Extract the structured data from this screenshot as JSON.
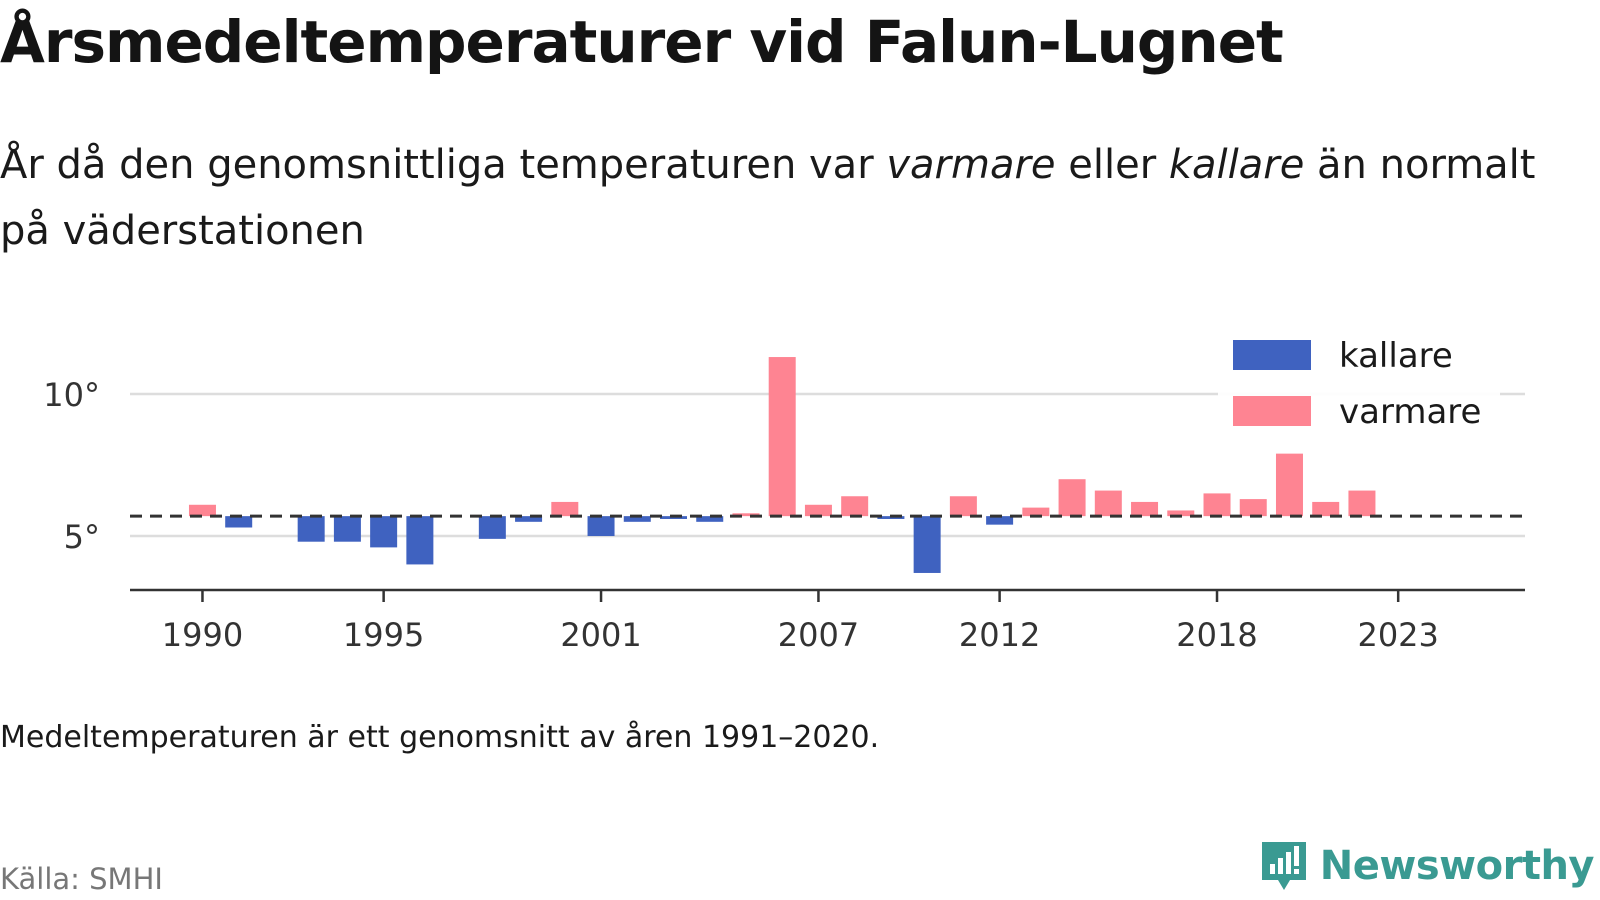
{
  "title": "Årsmedeltemperaturer vid Falun-Lugnet",
  "subtitle": {
    "part1": "År då den genomsnittliga temperaturen var ",
    "warm_word": "varmare",
    "part2": " eller ",
    "cold_word": "kallare",
    "part3": " än normalt på väderstationen"
  },
  "note": "Medeltemperaturen är ett genomsnitt av åren 1991–2020.",
  "source": "Källa: SMHI",
  "brand": {
    "name": "Newsworthy",
    "icon": "newsworthy-logo-icon",
    "color": "#3a9a92"
  },
  "colors": {
    "kallare": "#3f62c0",
    "varmare": "#fe8492",
    "reference": "#333333",
    "grid": "#dddddd"
  },
  "chart_data": {
    "type": "bar",
    "baseline": 5.7,
    "x": [
      1990,
      1991,
      1992,
      1993,
      1994,
      1995,
      1996,
      1997,
      1998,
      1999,
      2000,
      2001,
      2002,
      2003,
      2004,
      2005,
      2006,
      2007,
      2008,
      2009,
      2010,
      2011,
      2012,
      2013,
      2014,
      2015,
      2016,
      2017,
      2018,
      2019,
      2020,
      2021,
      2022
    ],
    "values": [
      6.1,
      5.3,
      null,
      4.8,
      4.8,
      4.6,
      4.0,
      null,
      4.9,
      5.5,
      6.2,
      5.0,
      5.5,
      5.6,
      5.5,
      5.8,
      11.3,
      6.1,
      6.4,
      5.6,
      3.7,
      6.4,
      5.4,
      6.0,
      7.0,
      6.6,
      6.2,
      5.9,
      6.5,
      6.3,
      7.9,
      6.2,
      6.6
    ],
    "series": [
      {
        "name": "kallare",
        "color": "#3f62c0"
      },
      {
        "name": "varmare",
        "color": "#fe8492"
      }
    ],
    "xticks": [
      1990,
      1995,
      2001,
      2007,
      2012,
      2018,
      2023
    ],
    "xtick_labels": [
      "1990",
      "1995",
      "2001",
      "2007",
      "2012",
      "2018",
      "2023"
    ],
    "yticks": [
      5,
      10
    ],
    "ytick_labels": [
      "5°",
      "10°"
    ],
    "xlim": [
      1988,
      2026.5
    ],
    "ylim": [
      3.1,
      11.9
    ],
    "grid": true,
    "legend": "top-right"
  }
}
